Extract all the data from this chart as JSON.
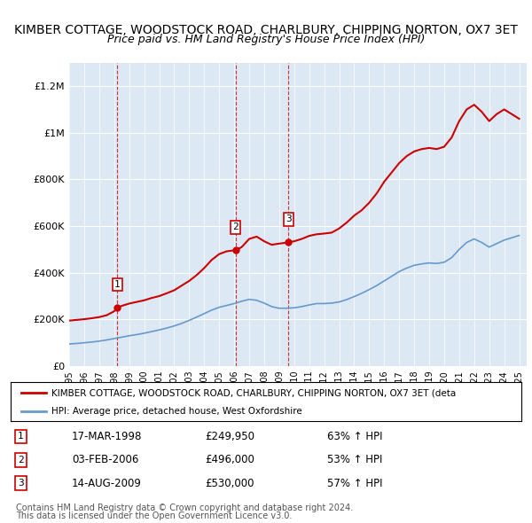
{
  "title": "KIMBER COTTAGE, WOODSTOCK ROAD, CHARLBURY, CHIPPING NORTON, OX7 3ET",
  "subtitle": "Price paid vs. HM Land Registry's House Price Index (HPI)",
  "title_fontsize": 10,
  "subtitle_fontsize": 9,
  "background_color": "#dce9f5",
  "plot_bg_color": "#dce9f5",
  "fig_bg_color": "#ffffff",
  "ylabel": "",
  "xlabel": "",
  "ylim": [
    0,
    1300000
  ],
  "xlim_start": 1995.0,
  "xlim_end": 2025.5,
  "yticks": [
    0,
    200000,
    400000,
    600000,
    800000,
    1000000,
    1200000
  ],
  "ytick_labels": [
    "£0",
    "£200K",
    "£400K",
    "£600K",
    "£800K",
    "£1M",
    "£1.2M"
  ],
  "xticks": [
    1995,
    1996,
    1997,
    1998,
    1999,
    2000,
    2001,
    2002,
    2003,
    2004,
    2005,
    2006,
    2007,
    2008,
    2009,
    2010,
    2011,
    2012,
    2013,
    2014,
    2015,
    2016,
    2017,
    2018,
    2019,
    2020,
    2021,
    2022,
    2023,
    2024,
    2025
  ],
  "sale_dates": [
    1998.21,
    2006.09,
    2009.62
  ],
  "sale_prices": [
    249950,
    496000,
    530000
  ],
  "sale_labels": [
    "1",
    "2",
    "3"
  ],
  "sale_info": [
    {
      "label": "1",
      "date": "17-MAR-1998",
      "price": "£249,950",
      "hpi": "63% ↑ HPI"
    },
    {
      "label": "2",
      "date": "03-FEB-2006",
      "price": "£496,000",
      "hpi": "53% ↑ HPI"
    },
    {
      "label": "3",
      "date": "14-AUG-2009",
      "price": "£530,000",
      "hpi": "57% ↑ HPI"
    }
  ],
  "legend_line1": "KIMBER COTTAGE, WOODSTOCK ROAD, CHARLBURY, CHIPPING NORTON, OX7 3ET (deta",
  "legend_line2": "HPI: Average price, detached house, West Oxfordshire",
  "footer1": "Contains HM Land Registry data © Crown copyright and database right 2024.",
  "footer2": "This data is licensed under the Open Government Licence v3.0.",
  "red_line_color": "#cc0000",
  "blue_line_color": "#6699cc",
  "red_years": [
    1995.0,
    1995.5,
    1996.0,
    1996.5,
    1997.0,
    1997.5,
    1998.0,
    1998.21,
    1998.5,
    1999.0,
    1999.5,
    2000.0,
    2000.5,
    2001.0,
    2001.5,
    2002.0,
    2002.5,
    2003.0,
    2003.5,
    2004.0,
    2004.5,
    2005.0,
    2005.5,
    2006.0,
    2006.09,
    2006.5,
    2007.0,
    2007.5,
    2008.0,
    2008.5,
    2009.0,
    2009.62,
    2010.0,
    2010.5,
    2011.0,
    2011.5,
    2012.0,
    2012.5,
    2013.0,
    2013.5,
    2014.0,
    2014.5,
    2015.0,
    2015.5,
    2016.0,
    2016.5,
    2017.0,
    2017.5,
    2018.0,
    2018.5,
    2019.0,
    2019.5,
    2020.0,
    2020.5,
    2021.0,
    2021.5,
    2022.0,
    2022.5,
    2023.0,
    2023.5,
    2024.0,
    2024.5,
    2025.0
  ],
  "red_values": [
    195000,
    198000,
    201000,
    205000,
    210000,
    218000,
    235000,
    249950,
    258000,
    268000,
    275000,
    282000,
    292000,
    300000,
    312000,
    325000,
    345000,
    365000,
    390000,
    420000,
    455000,
    480000,
    492000,
    496000,
    496000,
    510000,
    545000,
    555000,
    535000,
    520000,
    525000,
    530000,
    535000,
    545000,
    558000,
    565000,
    568000,
    572000,
    590000,
    615000,
    645000,
    668000,
    700000,
    740000,
    790000,
    830000,
    870000,
    900000,
    920000,
    930000,
    935000,
    930000,
    940000,
    980000,
    1050000,
    1100000,
    1120000,
    1090000,
    1050000,
    1080000,
    1100000,
    1080000,
    1060000
  ],
  "blue_years": [
    1995.0,
    1995.5,
    1996.0,
    1996.5,
    1997.0,
    1997.5,
    1998.0,
    1998.5,
    1999.0,
    1999.5,
    2000.0,
    2000.5,
    2001.0,
    2001.5,
    2002.0,
    2002.5,
    2003.0,
    2003.5,
    2004.0,
    2004.5,
    2005.0,
    2005.5,
    2006.0,
    2006.5,
    2007.0,
    2007.5,
    2008.0,
    2008.5,
    2009.0,
    2009.5,
    2010.0,
    2010.5,
    2011.0,
    2011.5,
    2012.0,
    2012.5,
    2013.0,
    2013.5,
    2014.0,
    2014.5,
    2015.0,
    2015.5,
    2016.0,
    2016.5,
    2017.0,
    2017.5,
    2018.0,
    2018.5,
    2019.0,
    2019.5,
    2020.0,
    2020.5,
    2021.0,
    2021.5,
    2022.0,
    2022.5,
    2023.0,
    2023.5,
    2024.0,
    2024.5,
    2025.0
  ],
  "blue_values": [
    95000,
    97000,
    100000,
    103000,
    107000,
    112000,
    118000,
    124000,
    130000,
    135000,
    141000,
    148000,
    155000,
    163000,
    172000,
    183000,
    196000,
    210000,
    225000,
    240000,
    252000,
    260000,
    268000,
    278000,
    286000,
    282000,
    270000,
    255000,
    248000,
    248000,
    250000,
    255000,
    262000,
    268000,
    268000,
    270000,
    275000,
    285000,
    298000,
    312000,
    328000,
    345000,
    365000,
    385000,
    405000,
    420000,
    432000,
    438000,
    442000,
    440000,
    445000,
    465000,
    500000,
    530000,
    545000,
    530000,
    510000,
    525000,
    540000,
    550000,
    560000
  ]
}
